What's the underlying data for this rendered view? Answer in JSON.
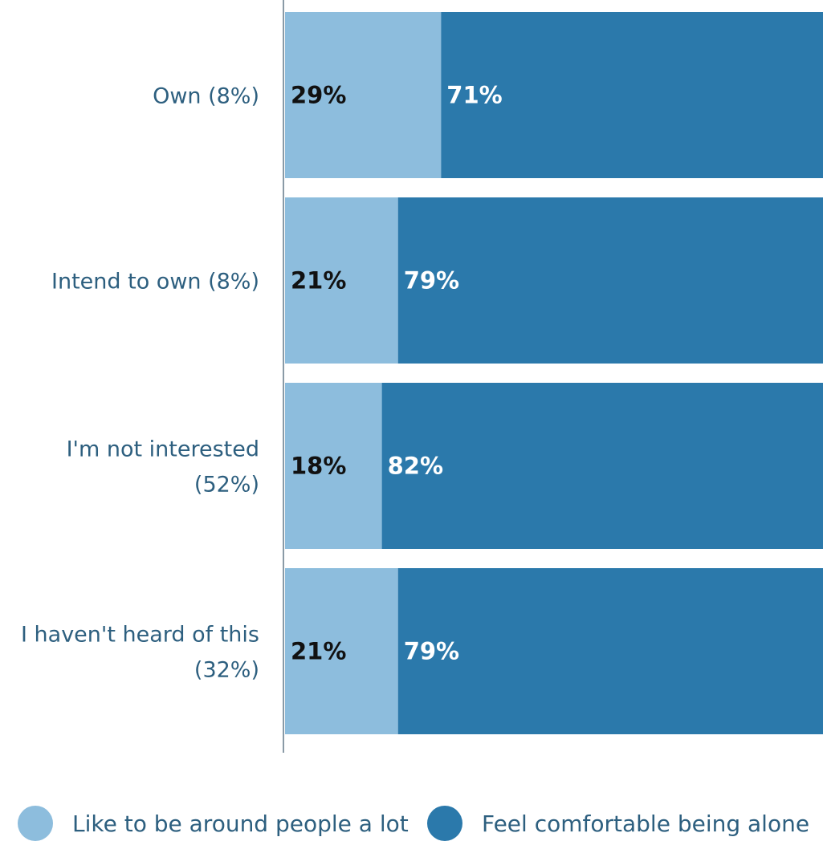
{
  "chart_data": {
    "type": "bar",
    "orientation": "horizontal",
    "stacked": true,
    "percent_stacked": true,
    "categories": [
      [
        "Own (8%)"
      ],
      [
        "Intend to own (8%)"
      ],
      [
        "I'm not interested",
        "(52%)"
      ],
      [
        "I haven't heard of this",
        "(32%)"
      ]
    ],
    "series": [
      {
        "name": "Like to be around people a lot",
        "values": [
          29,
          21,
          18,
          21
        ],
        "color": "#8dbddd",
        "label_color": "#111111"
      },
      {
        "name": "Feel comfortable being alone",
        "values": [
          71,
          79,
          82,
          79
        ],
        "color": "#2b79ab",
        "label_color": "#ffffff"
      }
    ],
    "value_suffix": "%",
    "xlim": [
      0,
      100
    ],
    "legend_position": "bottom"
  }
}
